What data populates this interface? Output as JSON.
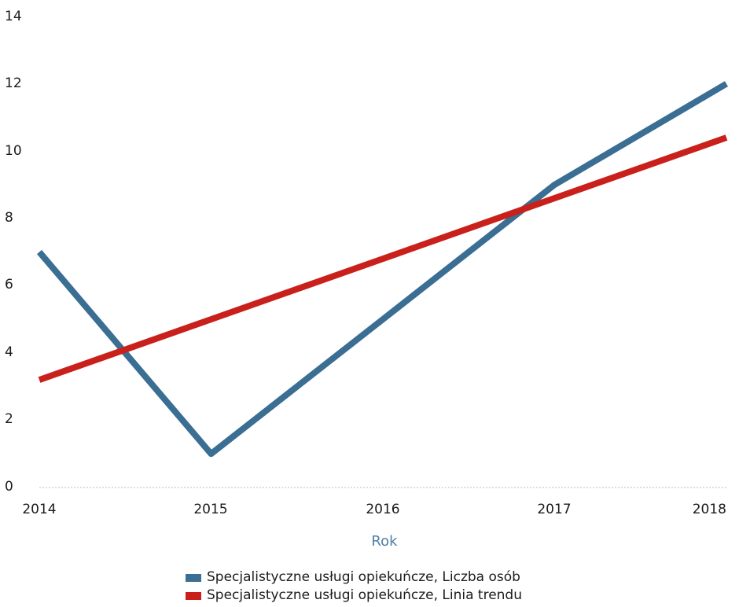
{
  "chart_data": {
    "type": "line",
    "title": "",
    "xlabel": "Rok",
    "ylabel": "",
    "categories": [
      "2014",
      "2015",
      "2016",
      "2017",
      "2018"
    ],
    "ylim": [
      0,
      14
    ],
    "yticks": [
      0,
      2,
      4,
      6,
      8,
      10,
      12,
      14
    ],
    "grid": false,
    "legend_position": "bottom",
    "series": [
      {
        "name": "Specjalistyczne usługi opiekuńcze, Liczba osób",
        "color": "#3a6e93",
        "values": [
          7,
          1,
          5,
          9,
          12
        ]
      },
      {
        "name": "Specjalistyczne usługi opiekuńcze, Linia trendu",
        "color": "#c9201c",
        "values": [
          3.2,
          5.0,
          6.8,
          8.6,
          10.4
        ]
      }
    ]
  }
}
